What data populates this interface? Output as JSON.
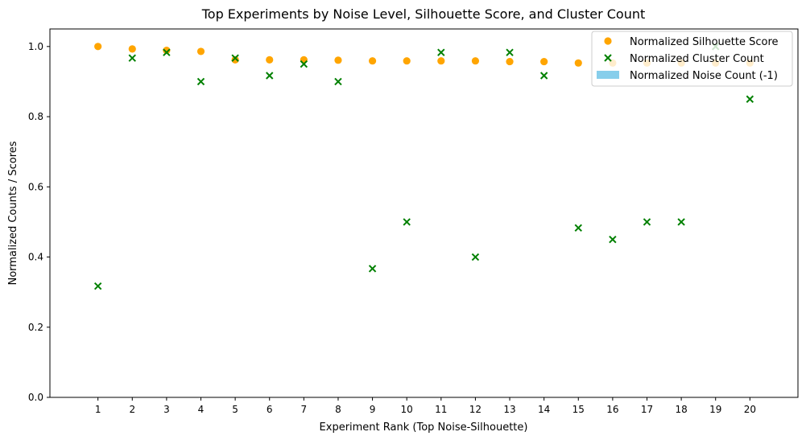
{
  "chart_data": {
    "type": "scatter",
    "title": "Top Experiments by Noise Level, Silhouette Score, and Cluster Count",
    "xlabel": "Experiment Rank (Top Noise-Silhouette)",
    "ylabel": "Normalized Counts / Scores",
    "x": [
      1,
      2,
      3,
      4,
      5,
      6,
      7,
      8,
      9,
      10,
      11,
      12,
      13,
      14,
      15,
      16,
      17,
      18,
      19,
      20
    ],
    "xlim": [
      -0.4,
      21.4
    ],
    "ylim": [
      0.0,
      1.05
    ],
    "yticks": [
      0.0,
      0.2,
      0.4,
      0.6,
      0.8,
      1.0
    ],
    "ytick_labels": [
      "0.0",
      "0.2",
      "0.4",
      "0.6",
      "0.8",
      "1.0"
    ],
    "xtick_labels": [
      "1",
      "2",
      "3",
      "4",
      "5",
      "6",
      "7",
      "8",
      "9",
      "10",
      "11",
      "12",
      "13",
      "14",
      "15",
      "16",
      "17",
      "18",
      "19",
      "20"
    ],
    "grid": false,
    "legend_position": "top-right",
    "series": [
      {
        "name": "Normalized Silhouette Score",
        "marker": "circle",
        "color": "#ffa500",
        "values": [
          1.0,
          0.993,
          0.989,
          0.986,
          0.962,
          0.962,
          0.962,
          0.961,
          0.959,
          0.959,
          0.959,
          0.959,
          0.957,
          0.957,
          0.953,
          0.953,
          0.953,
          0.953,
          0.953,
          0.953
        ]
      },
      {
        "name": "Normalized Cluster Count",
        "marker": "x",
        "color": "#008000",
        "values": [
          0.317,
          0.967,
          0.983,
          0.9,
          0.967,
          0.917,
          0.95,
          0.9,
          0.367,
          0.5,
          0.983,
          0.4,
          0.983,
          0.917,
          0.483,
          0.45,
          0.5,
          0.5,
          1.0,
          0.85
        ]
      },
      {
        "name": "Normalized Noise Count (-1)",
        "marker": "bar",
        "color": "#87ceeb",
        "values": [
          0,
          0,
          0,
          0,
          0,
          0,
          0,
          0,
          0,
          0,
          0,
          0,
          0,
          0,
          0,
          0,
          0,
          0,
          0,
          0
        ]
      }
    ]
  }
}
